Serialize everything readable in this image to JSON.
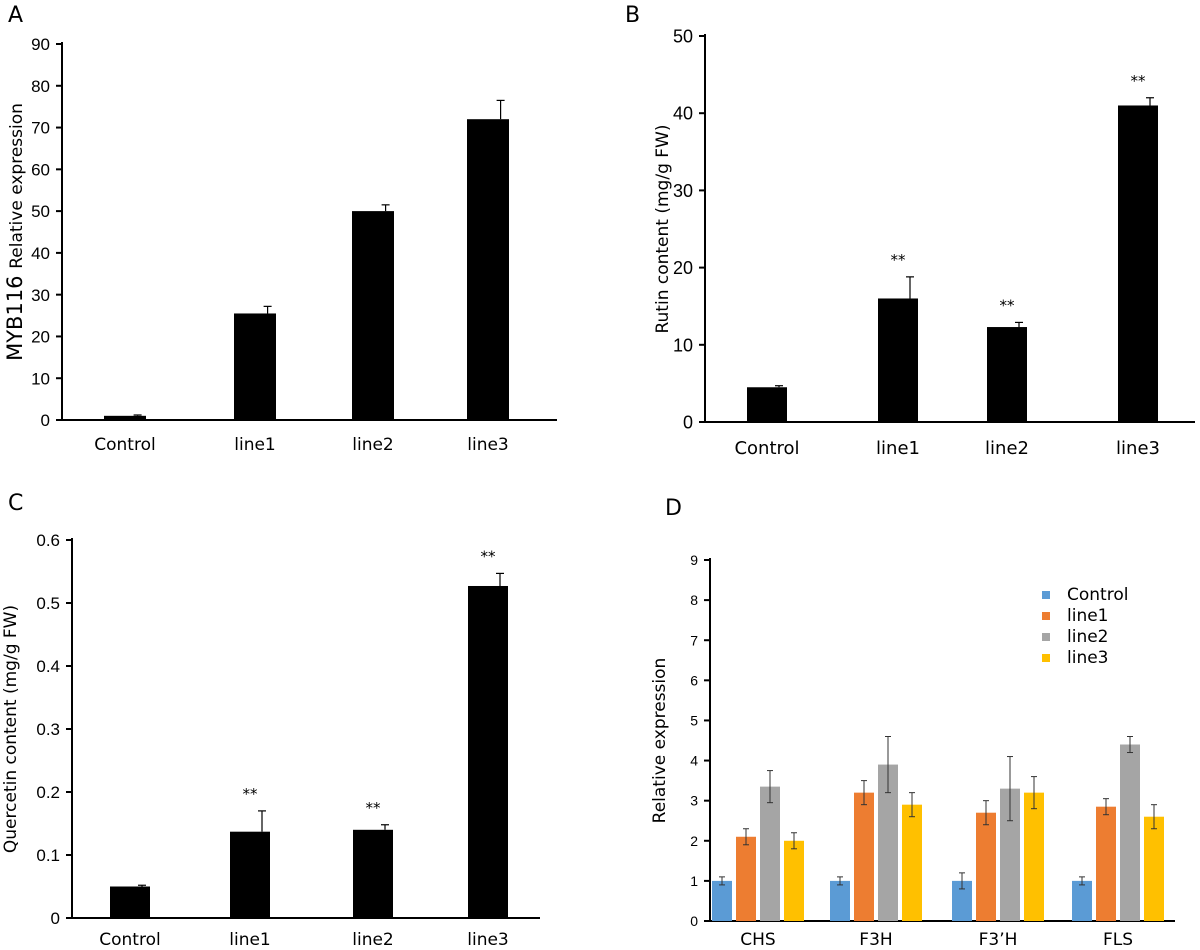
{
  "chart_data": [
    {
      "panel": "A",
      "type": "bar",
      "ylabel_prefix": "MYB116",
      "ylabel": "Relative expression",
      "categories": [
        "Control",
        "line1",
        "line2",
        "line3"
      ],
      "values": [
        1,
        25.5,
        50,
        72
      ],
      "errors": [
        0.2,
        1.7,
        1.5,
        4.5
      ],
      "significance": [
        "",
        "",
        "",
        ""
      ],
      "ylim": [
        0,
        90
      ],
      "yticks": [
        "0",
        "10",
        "20",
        "30",
        "40",
        "50",
        "60",
        "70",
        "80",
        "90"
      ],
      "color": "#000000"
    },
    {
      "panel": "B",
      "type": "bar",
      "ylabel": "Rutin content (mg/g FW)",
      "categories": [
        "Control",
        "line1",
        "line2",
        "line3"
      ],
      "values": [
        4.5,
        16,
        12.3,
        41
      ],
      "errors": [
        0.2,
        2.8,
        0.6,
        1
      ],
      "significance": [
        "",
        "**",
        "**",
        "**"
      ],
      "ylim": [
        0,
        50
      ],
      "yticks": [
        "0",
        "10",
        "20",
        "30",
        "40",
        "50"
      ],
      "color": "#000000"
    },
    {
      "panel": "C",
      "type": "bar",
      "ylabel": "Quercetin content (mg/g FW)",
      "categories": [
        "Control",
        "line1",
        "line2",
        "line3"
      ],
      "values": [
        0.05,
        0.137,
        0.14,
        0.527
      ],
      "errors": [
        0.002,
        0.033,
        0.008,
        0.02
      ],
      "significance": [
        "",
        "**",
        "**",
        "**"
      ],
      "ylim": [
        0,
        0.6
      ],
      "yticks": [
        "0",
        "0.1",
        "0.2",
        "0.3",
        "0.4",
        "0.5",
        "0.6"
      ],
      "color": "#000000"
    },
    {
      "panel": "D",
      "type": "bar",
      "ylabel": "Relative expression",
      "categories": [
        "CHS",
        "F3H",
        "F3’H",
        "FLS"
      ],
      "ylim": [
        0,
        9
      ],
      "yticks": [
        "0",
        "1",
        "2",
        "3",
        "4",
        "5",
        "6",
        "7",
        "8",
        "9"
      ],
      "legend_position": "top-right",
      "series": [
        {
          "name": "Control",
          "color": "#5B9BD5",
          "values": [
            1,
            1,
            1,
            1
          ],
          "errors": [
            0.1,
            0.1,
            0.2,
            0.1
          ]
        },
        {
          "name": "line1",
          "color": "#ED7D31",
          "values": [
            2.1,
            3.2,
            2.7,
            2.85
          ],
          "errors": [
            0.2,
            0.3,
            0.3,
            0.2
          ]
        },
        {
          "name": "line2",
          "color": "#A5A5A5",
          "values": [
            3.35,
            3.9,
            3.3,
            4.4
          ],
          "errors": [
            0.4,
            0.7,
            0.8,
            0.2
          ]
        },
        {
          "name": "line3",
          "color": "#FFC000",
          "values": [
            2,
            2.9,
            3.2,
            2.6
          ],
          "errors": [
            0.2,
            0.3,
            0.4,
            0.3
          ]
        }
      ]
    }
  ]
}
